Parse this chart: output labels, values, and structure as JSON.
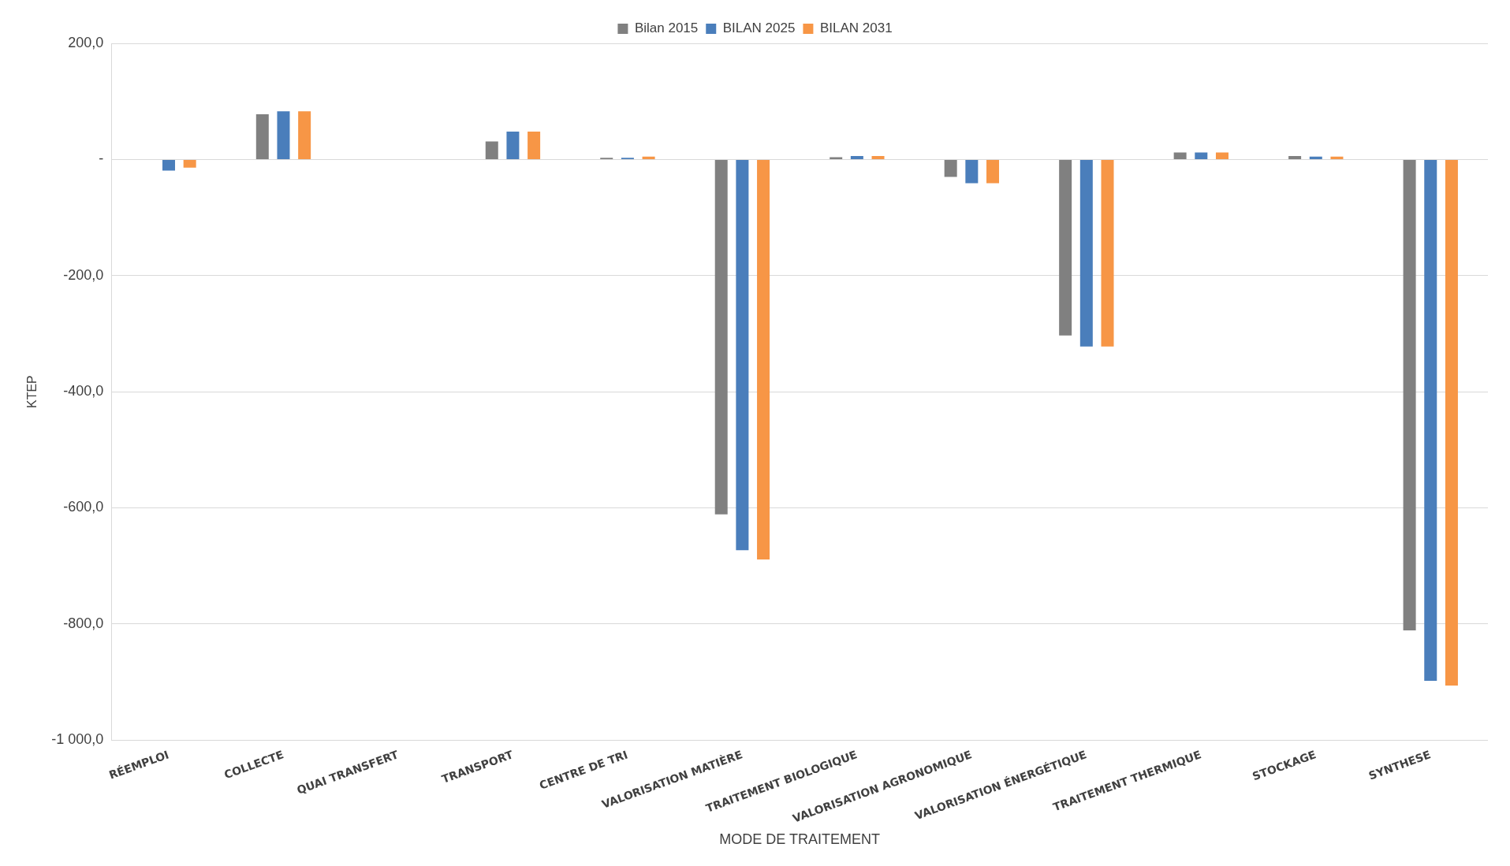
{
  "chart_data": {
    "type": "bar",
    "xlabel": "MODE DE TRAITEMENT",
    "ylabel": "KTEP",
    "categories": [
      "RÉEMPLOI",
      "COLLECTE",
      "QUAI TRANSFERT",
      "TRANSPORT",
      "CENTRE DE TRI",
      "VALORISATION MATIÈRE",
      "TRAITEMENT BIOLOGIQUE",
      "VALORISATION AGRONOMIQUE",
      "VALORISATION ÉNERGÉTIQUE",
      "TRAITEMENT THERMIQUE",
      "STOCKAGE",
      "SYNTHESE"
    ],
    "series": [
      {
        "name": "Bilan 2015",
        "color": "#808080",
        "values": [
          0,
          78,
          0,
          31,
          3,
          -611,
          4,
          -30,
          -303,
          12,
          6,
          -811
        ]
      },
      {
        "name": "BILAN 2025",
        "color": "#4a7ebb",
        "values": [
          -19,
          83,
          0,
          48,
          3,
          -673,
          6,
          -41,
          -322,
          12,
          5,
          -898
        ]
      },
      {
        "name": "BILAN 2031",
        "color": "#f79646",
        "values": [
          -14,
          83,
          0,
          48,
          5,
          -689,
          6,
          -41,
          -322,
          12,
          5,
          -906
        ]
      }
    ],
    "ylim": [
      -1000,
      200
    ],
    "yticks": [
      {
        "value": -1000,
        "label": "-1 000,0"
      },
      {
        "value": -800,
        "label": "-800,0"
      },
      {
        "value": -600,
        "label": "-600,0"
      },
      {
        "value": -400,
        "label": "-400,0"
      },
      {
        "value": -200,
        "label": "-200,0"
      },
      {
        "value": 0,
        "label": "-"
      },
      {
        "value": 200,
        "label": "200,0"
      }
    ],
    "grid": "y",
    "legend": "top"
  }
}
